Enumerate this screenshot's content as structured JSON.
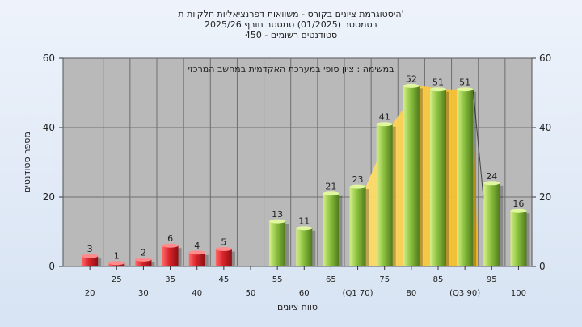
{
  "header": {
    "title_line1": "היסטוגרמת ציונים בקורס - משוואות דפרנציאליות חלקיות ת'",
    "title_line2": "בסמסטר  (01/2025)  סמסטר חורף  2025/26",
    "title_line3": "סטודנטים רשומים - 450"
  },
  "colors": {
    "red": "#d8232a",
    "green": "#8cc13f",
    "band": "#ffd040",
    "plot_bg": "#b9b9b9",
    "grid": "#6e6e6e"
  },
  "chart_data": {
    "type": "bar",
    "title": "",
    "subtitle": "במשימה : ציון סופי במערכת האקדמית במחשב המרכזי",
    "xlabel": "טווח ציונים",
    "ylabel": "מספר סטודנטים",
    "ylim": [
      0,
      60
    ],
    "yticks": [
      0,
      20,
      40,
      60
    ],
    "grid": true,
    "categories": [
      "20",
      "25",
      "30",
      "35",
      "40",
      "45",
      "50",
      "55",
      "60",
      "65",
      "70",
      "75",
      "80",
      "85",
      "90",
      "95",
      "100"
    ],
    "tick_labels": [
      "20",
      "25",
      "30",
      "35",
      "40",
      "45",
      "50",
      "55",
      "60",
      "65",
      "(Q1 70)",
      "75",
      "80",
      "85",
      "(Q3 90)",
      "95",
      "100"
    ],
    "values": [
      3,
      1,
      2,
      6,
      4,
      5,
      0,
      13,
      11,
      21,
      23,
      41,
      52,
      51,
      51,
      24,
      16
    ],
    "bar_labels": [
      "3",
      "1",
      "2",
      "6",
      "4",
      "5",
      "",
      "13",
      "11",
      "21",
      "23",
      "41",
      "52",
      "51",
      "51",
      "24",
      "16"
    ],
    "fail_threshold": 50,
    "highlight_band": {
      "from": "70",
      "to": "90"
    }
  }
}
